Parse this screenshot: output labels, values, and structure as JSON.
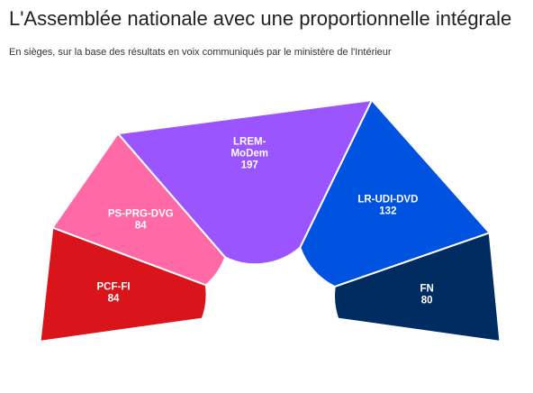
{
  "header": {
    "title": "L'Assemblée nationale avec une proportionnelle intégrale",
    "subtitle": "En sièges, sur la base des résultats en voix communiqués par le ministère de l'Intérieur"
  },
  "chart_data": {
    "type": "pie",
    "title": "L'Assemblée nationale avec une proportionnelle intégrale",
    "subtitle": "En sièges, sur la base des résultats en voix communiqués par le ministère de l'Intérieur",
    "series": [
      {
        "name": "PCF-FI",
        "label_lines": [
          "PCF-FI"
        ],
        "value": 84,
        "color": "#d9151b"
      },
      {
        "name": "PS-PRG-DVG",
        "label_lines": [
          "PS-PRG-DVG"
        ],
        "value": 84,
        "color": "#ff69a6"
      },
      {
        "name": "LREM-MoDem",
        "label_lines": [
          "LREM-",
          "MoDem"
        ],
        "value": 197,
        "color": "#9b55ff"
      },
      {
        "name": "LR-UDI-DVD",
        "label_lines": [
          "LR-UDI-DVD"
        ],
        "value": 132,
        "color": "#0052e0"
      },
      {
        "name": "FN",
        "label_lines": [
          "FN"
        ],
        "value": 80,
        "color": "#002c61"
      }
    ]
  }
}
